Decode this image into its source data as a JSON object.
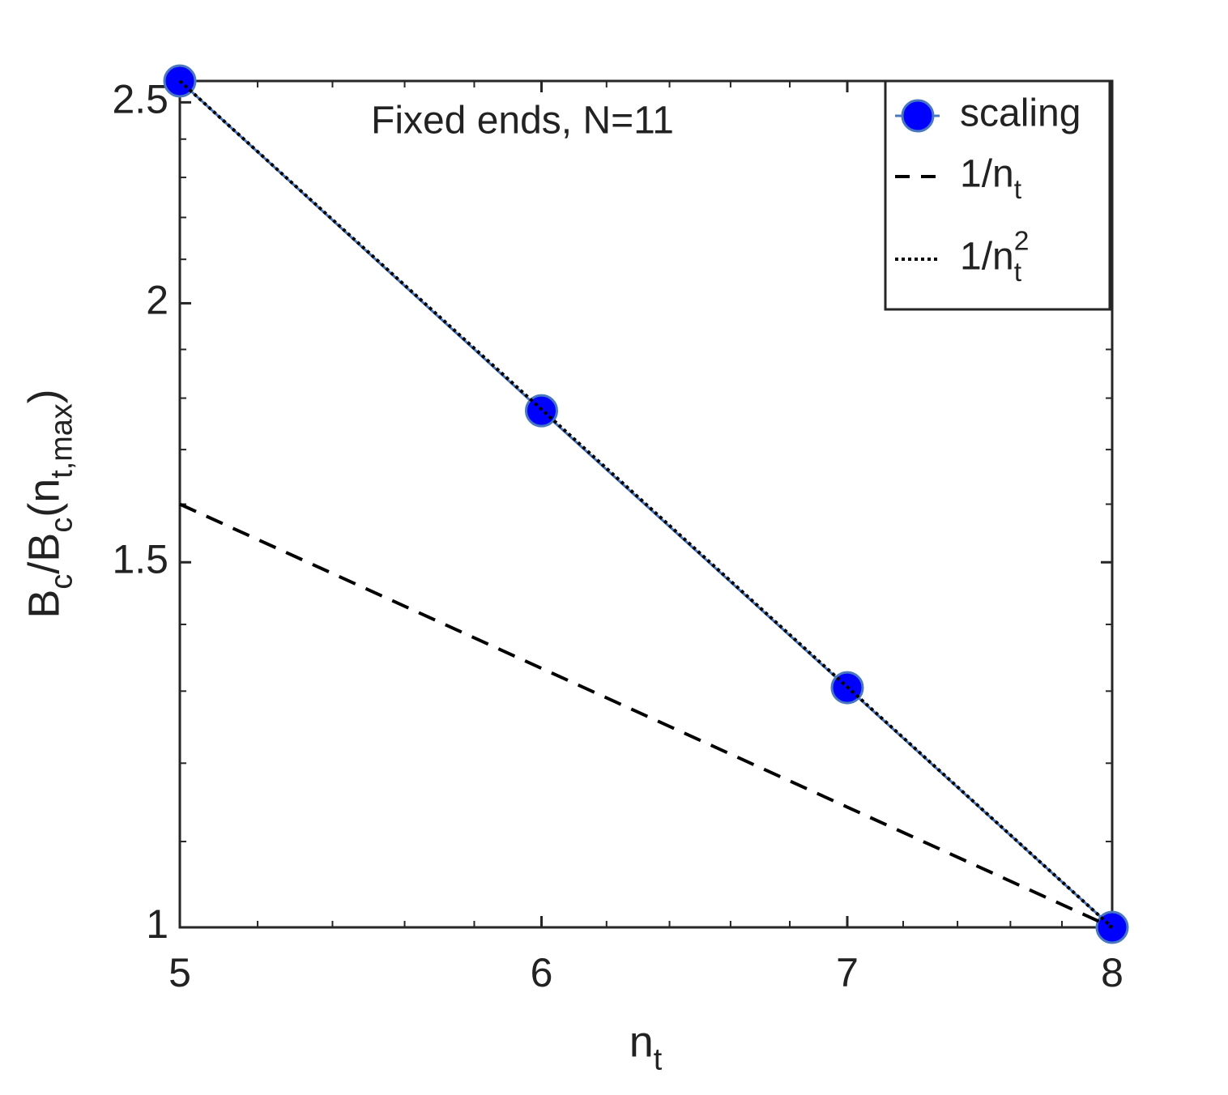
{
  "chart_data": {
    "type": "line",
    "title": "Fixed ends, N=11",
    "x_label": [
      {
        "text": "n"
      },
      {
        "text": "t",
        "script": "sub"
      }
    ],
    "y_label": [
      {
        "text": "B"
      },
      {
        "text": "c",
        "script": "sub"
      },
      {
        "text": "/B"
      },
      {
        "text": "c",
        "script": "sub"
      },
      {
        "text": "(n"
      },
      {
        "text": "t,max",
        "script": "sub"
      },
      {
        "text": ")"
      }
    ],
    "x": [
      5,
      6,
      7,
      8
    ],
    "series": [
      {
        "name": [
          {
            "text": "scaling"
          }
        ],
        "color": "#0000ff",
        "line_color": "#4a78c0",
        "marker": "circle",
        "dash": "solid",
        "values": [
          2.56,
          1.775,
          1.305,
          1
        ]
      },
      {
        "name": [
          {
            "text": "1/n"
          },
          {
            "text": "t",
            "script": "sub"
          }
        ],
        "color": "#000000",
        "dash": "dashed",
        "values": [
          1.6,
          1.3333,
          1.1429,
          1
        ]
      },
      {
        "name": [
          {
            "text": "1/n"
          },
          {
            "text": "2",
            "script": "sup"
          },
          {
            "text": "t",
            "script": "sub"
          }
        ],
        "color": "#000000",
        "dash": "dotted",
        "values": [
          2.56,
          1.7778,
          1.3061,
          1
        ]
      }
    ],
    "xscale": "log",
    "yscale": "log",
    "xlim": [
      5,
      8
    ],
    "ylim": [
      1,
      2.56
    ],
    "xticks": [
      5,
      6,
      7,
      8
    ],
    "yticks": [
      1,
      1.5,
      2,
      2.5
    ],
    "xminorticks": [
      5.2,
      5.4,
      5.6,
      5.8,
      6.2,
      6.4,
      6.6,
      6.8,
      7.2,
      7.4,
      7.6,
      7.8
    ],
    "yminorticks": [
      1.1,
      1.2,
      1.3,
      1.4,
      1.6,
      1.7,
      1.8,
      1.9,
      2.1,
      2.2,
      2.3,
      2.4
    ],
    "legend": "northeast",
    "grid": false
  }
}
